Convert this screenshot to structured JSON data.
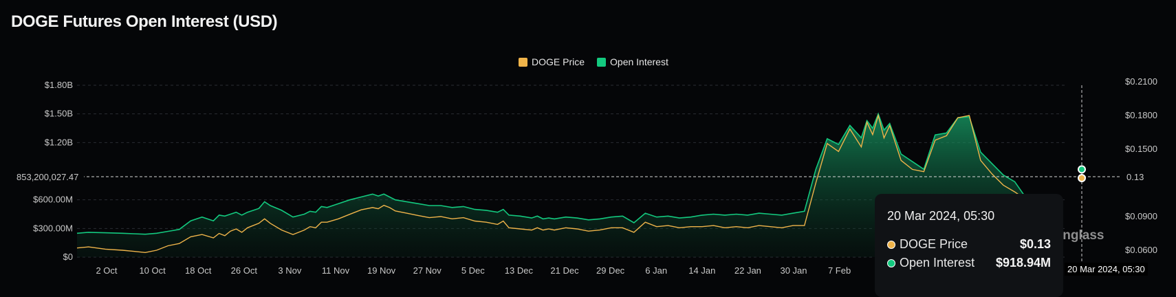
{
  "title": "DOGE Futures Open Interest (USD)",
  "legend": [
    {
      "label": "DOGE Price",
      "color": "#f0b44a"
    },
    {
      "label": "Open Interest",
      "color": "#13c97f"
    }
  ],
  "crosshair": {
    "left_label": "853,200,027.47",
    "right_label": "0.13",
    "x_label": "20 Mar 2024, 05:30"
  },
  "tooltip": {
    "date": "20 Mar 2024, 05:30",
    "rows": [
      {
        "label": "DOGE Price",
        "value": "$0.13",
        "color": "#f0b44a"
      },
      {
        "label": "Open Interest",
        "value": "$918.94M",
        "color": "#13c97f"
      }
    ]
  },
  "watermark": "inglass",
  "chart_data": {
    "type": "area",
    "title": "DOGE Futures Open Interest (USD)",
    "x_tick_labels": [
      "2 Oct",
      "10 Oct",
      "18 Oct",
      "26 Oct",
      "3 Nov",
      "11 Nov",
      "19 Nov",
      "27 Nov",
      "5 Dec",
      "13 Dec",
      "21 Dec",
      "29 Dec",
      "6 Jan",
      "14 Jan",
      "22 Jan",
      "30 Jan",
      "7 Feb"
    ],
    "y_left_ticks": [
      "$1.80B",
      "$1.50B",
      "$1.20B",
      "$600.00M",
      "$300.00M",
      "$0"
    ],
    "y_left_tick_values": [
      1800,
      1500,
      1200,
      600,
      300,
      0
    ],
    "y_left_range_millions": [
      0,
      1800
    ],
    "y_right_ticks": [
      "$0.2100",
      "$0.1800",
      "$0.1500",
      "$0.0900",
      "$0.0600"
    ],
    "y_right_tick_values": [
      0.21,
      0.18,
      0.15,
      0.09,
      0.06
    ],
    "y_right_range": [
      0.048,
      0.21
    ],
    "grid": true,
    "legend_position": "top-center",
    "series": [
      {
        "name": "Open Interest",
        "axis": "left",
        "unit": "USD millions",
        "color": "#13c97f",
        "x": [
          0,
          2,
          5,
          8,
          10,
          12,
          14,
          16,
          18,
          20,
          22,
          24,
          25,
          26,
          27,
          28,
          29,
          30,
          32,
          33,
          34,
          36,
          38,
          40,
          41,
          42,
          43,
          44,
          46,
          48,
          50,
          52,
          53,
          54,
          55,
          56,
          58,
          60,
          62,
          64,
          66,
          68,
          70,
          72,
          74,
          75,
          76,
          78,
          80,
          81,
          82,
          83,
          84,
          86,
          88,
          90,
          92,
          94,
          96,
          98,
          100,
          102,
          104,
          106,
          108,
          110,
          112,
          114,
          116,
          118,
          120,
          122,
          124,
          126,
          128,
          130,
          132,
          134,
          136,
          138,
          139,
          140,
          141,
          142,
          143,
          145,
          147,
          149,
          151,
          153,
          155,
          157,
          159,
          161,
          163,
          165,
          167
        ],
        "values": [
          250,
          260,
          255,
          250,
          245,
          240,
          250,
          270,
          290,
          380,
          420,
          380,
          440,
          430,
          450,
          470,
          440,
          470,
          510,
          580,
          540,
          490,
          420,
          450,
          480,
          470,
          530,
          520,
          560,
          600,
          630,
          660,
          640,
          660,
          630,
          600,
          580,
          560,
          540,
          540,
          520,
          530,
          500,
          490,
          470,
          500,
          440,
          430,
          410,
          430,
          400,
          410,
          400,
          420,
          410,
          390,
          400,
          420,
          430,
          360,
          460,
          420,
          430,
          410,
          420,
          440,
          450,
          440,
          450,
          440,
          460,
          450,
          440,
          460,
          480,
          920,
          1240,
          1180,
          1380,
          1250,
          1430,
          1350,
          1500,
          1330,
          1400,
          1080,
          1000,
          920,
          1280,
          1300,
          1460,
          1470,
          1100,
          980,
          860,
          790,
          620
        ],
        "note": ""
      },
      {
        "name": "DOGE Price",
        "axis": "right",
        "unit": "USD",
        "color": "#f0b44a",
        "x": [
          0,
          2,
          5,
          8,
          10,
          12,
          14,
          16,
          18,
          20,
          22,
          24,
          25,
          26,
          27,
          28,
          29,
          30,
          32,
          33,
          34,
          36,
          38,
          40,
          41,
          42,
          43,
          44,
          46,
          48,
          50,
          52,
          53,
          54,
          55,
          56,
          58,
          60,
          62,
          64,
          66,
          68,
          70,
          72,
          74,
          75,
          76,
          78,
          80,
          81,
          82,
          83,
          84,
          86,
          88,
          90,
          92,
          94,
          96,
          98,
          100,
          102,
          104,
          106,
          108,
          110,
          112,
          114,
          116,
          118,
          120,
          122,
          124,
          126,
          128,
          130,
          132,
          134,
          136,
          138,
          139,
          140,
          141,
          142,
          143,
          145,
          147,
          149,
          151,
          153,
          155,
          157,
          159,
          161,
          163,
          165,
          167
        ],
        "values": [
          0.062,
          0.063,
          0.061,
          0.06,
          0.059,
          0.058,
          0.06,
          0.064,
          0.066,
          0.072,
          0.074,
          0.071,
          0.075,
          0.073,
          0.077,
          0.079,
          0.076,
          0.08,
          0.084,
          0.088,
          0.084,
          0.078,
          0.074,
          0.078,
          0.081,
          0.08,
          0.085,
          0.085,
          0.088,
          0.092,
          0.096,
          0.098,
          0.097,
          0.1,
          0.098,
          0.095,
          0.093,
          0.091,
          0.089,
          0.09,
          0.088,
          0.089,
          0.086,
          0.085,
          0.083,
          0.086,
          0.08,
          0.079,
          0.078,
          0.08,
          0.078,
          0.079,
          0.078,
          0.08,
          0.079,
          0.077,
          0.078,
          0.08,
          0.08,
          0.076,
          0.085,
          0.081,
          0.082,
          0.08,
          0.081,
          0.081,
          0.082,
          0.08,
          0.081,
          0.08,
          0.082,
          0.081,
          0.08,
          0.082,
          0.082,
          0.12,
          0.155,
          0.148,
          0.168,
          0.152,
          0.174,
          0.163,
          0.18,
          0.16,
          0.171,
          0.14,
          0.132,
          0.13,
          0.158,
          0.162,
          0.178,
          0.18,
          0.14,
          0.128,
          0.118,
          0.112,
          0.105
        ],
        "note": ""
      }
    ]
  }
}
